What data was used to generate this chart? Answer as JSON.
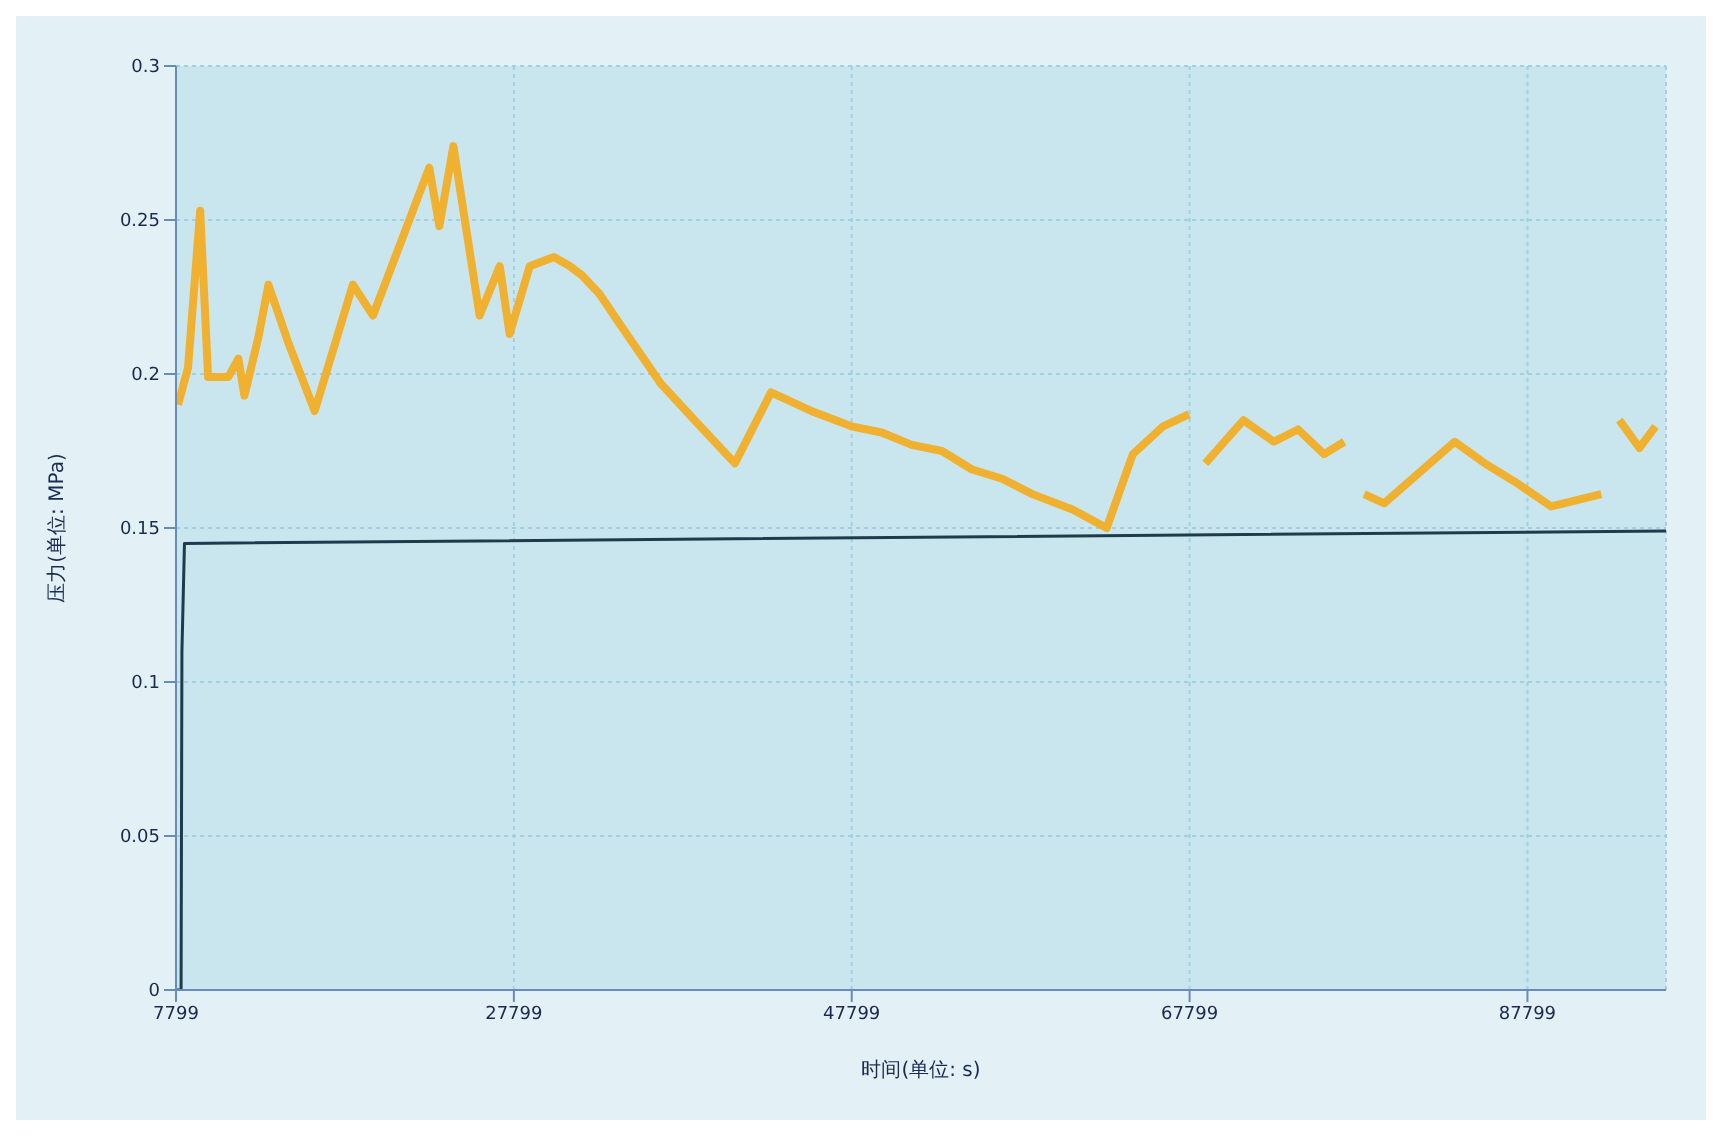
{
  "chart_data": {
    "type": "line",
    "xlabel": "时间(单位: s)",
    "ylabel": "压力(单位: MPa)",
    "xlim": [
      7799,
      96000
    ],
    "xticks": [
      7799,
      27799,
      47799,
      67799,
      87799
    ],
    "ylim": [
      0,
      0.3
    ],
    "yticks": [
      0,
      0.05,
      0.1,
      0.15,
      0.2,
      0.25,
      0.3
    ],
    "grid": true,
    "marker": "none",
    "line_style": "solid",
    "series": [
      {
        "color": "#f0b030",
        "x": [
          7920,
          8510,
          9230,
          9700,
          10890,
          11490,
          11850,
          12680,
          13270,
          14460,
          16010,
          18270,
          19460,
          22790,
          23390,
          24220,
          25770,
          26960,
          27550,
          28740,
          30170,
          31120,
          31840,
          32870,
          34100,
          36480,
          38500,
          40880,
          43020,
          45400,
          47780,
          49570,
          51350,
          53140,
          54920,
          56710,
          58490,
          60870,
          62890,
          64440,
          66230,
          67770,
          68200,
          68730,
          70990,
          72780,
          74210,
          75760,
          76950,
          77500,
          78130,
          79320,
          83490,
          85270,
          87060,
          89200,
          92170,
          92700,
          93240,
          94430,
          95380
        ],
        "values": [
          0.19,
          0.202,
          0.253,
          0.199,
          0.199,
          0.205,
          0.193,
          0.212,
          0.229,
          0.21,
          0.188,
          0.229,
          0.219,
          0.267,
          0.248,
          0.274,
          0.219,
          0.235,
          0.213,
          0.235,
          0.238,
          0.235,
          0.232,
          0.226,
          0.216,
          0.197,
          0.185,
          0.171,
          0.194,
          0.188,
          0.183,
          0.181,
          0.177,
          0.175,
          0.169,
          0.166,
          0.161,
          0.156,
          0.15,
          0.174,
          0.183,
          0.187,
          null,
          0.171,
          0.185,
          0.178,
          0.182,
          0.174,
          0.178,
          null,
          0.161,
          0.158,
          0.178,
          0.171,
          0.165,
          0.157,
          0.161,
          null,
          0.185,
          0.176,
          0.183
        ]
      },
      {
        "color": "#1f3a4a",
        "x": [
          7799,
          8100,
          8150,
          8300,
          96000
        ],
        "values": [
          0,
          0,
          0.11,
          0.145,
          0.149
        ]
      }
    ]
  }
}
